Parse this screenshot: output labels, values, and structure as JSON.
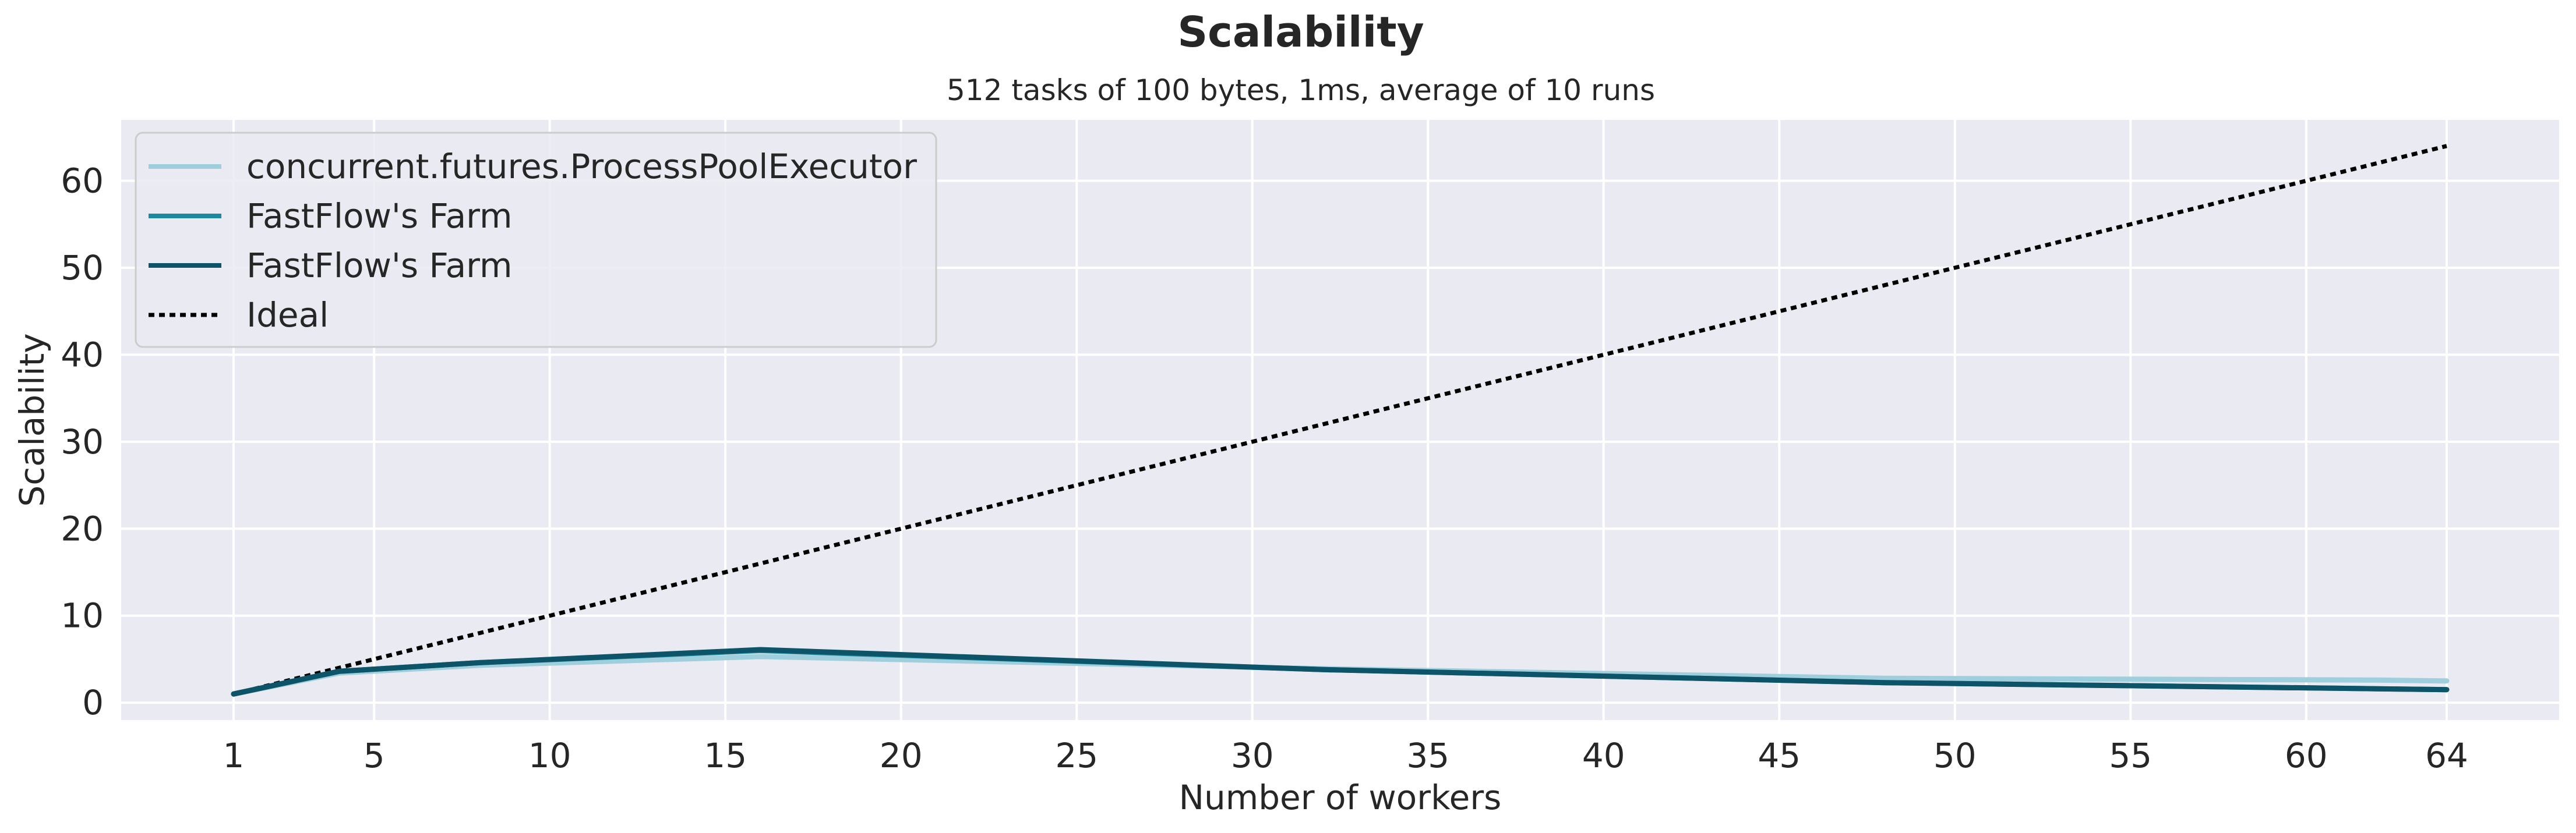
{
  "chart_data": {
    "type": "line",
    "title": "Scalability",
    "subtitle": "512 tasks of 100 bytes, 1ms, average of 10 runs",
    "xlabel": "Number of workers",
    "ylabel": "Scalability",
    "xlim": [
      -2.2,
      67.2
    ],
    "ylim": [
      -2,
      67
    ],
    "xticks": [
      1,
      5,
      10,
      15,
      20,
      25,
      30,
      35,
      40,
      45,
      50,
      55,
      60,
      64
    ],
    "yticks": [
      0,
      10,
      20,
      30,
      40,
      50,
      60
    ],
    "grid": true,
    "legend_position": "top-left",
    "x": [
      1,
      4,
      8,
      16,
      32,
      48,
      62,
      64
    ],
    "series": [
      {
        "name": "concurrent.futures.ProcessPoolExecutor",
        "color": "#9fcfdc",
        "style": "solid",
        "values": [
          1.0,
          3.4,
          4.3,
          5.3,
          3.9,
          2.8,
          2.6,
          2.5
        ]
      },
      {
        "name": "FastFlow's Farm",
        "color": "#1b8aa0",
        "style": "solid",
        "values": [
          1.0,
          3.6,
          4.6,
          6.0,
          3.8,
          2.3,
          1.6,
          1.5
        ]
      },
      {
        "name": "FastFlow's Farm",
        "color": "#0d5468",
        "style": "solid",
        "values": [
          1.0,
          3.6,
          4.6,
          6.1,
          3.8,
          2.3,
          1.6,
          1.5
        ]
      },
      {
        "name": "Ideal",
        "color": "#000000",
        "style": "dashed",
        "values": [
          1,
          4,
          8,
          16,
          32,
          48,
          62,
          64
        ]
      }
    ]
  }
}
